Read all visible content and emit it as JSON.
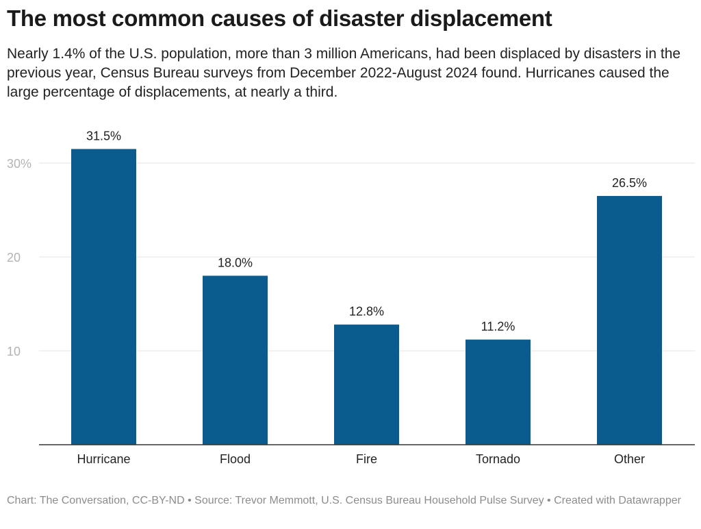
{
  "title": "The most common causes of disaster displacement",
  "subtitle": "Nearly 1.4% of the U.S. population, more than 3 million Americans, had been displaced by disasters in the previous year, Census Bureau surveys from December 2022-August 2024 found. Hurricanes caused the large percentage of displacements, at nearly a third.",
  "footer": "Chart: The Conversation, CC-BY-ND • Source: Trevor Memmott, U.S. Census Bureau Household Pulse Survey • Created with Datawrapper",
  "chart_data": {
    "type": "bar",
    "categories": [
      "Hurricane",
      "Flood",
      "Fire",
      "Tornado",
      "Other"
    ],
    "values": [
      31.5,
      18.0,
      12.8,
      11.2,
      26.5
    ],
    "data_labels": [
      "31.5%",
      "18.0%",
      "12.8%",
      "11.2%",
      "26.5%"
    ],
    "yticks": [
      10,
      20,
      30
    ],
    "ytick_labels": [
      "10",
      "20",
      "30%"
    ],
    "ylim": [
      0,
      34
    ],
    "grid": true,
    "bar_color": "#0a5c8e",
    "title": "The most common causes of disaster displacement",
    "xlabel": "",
    "ylabel": ""
  }
}
